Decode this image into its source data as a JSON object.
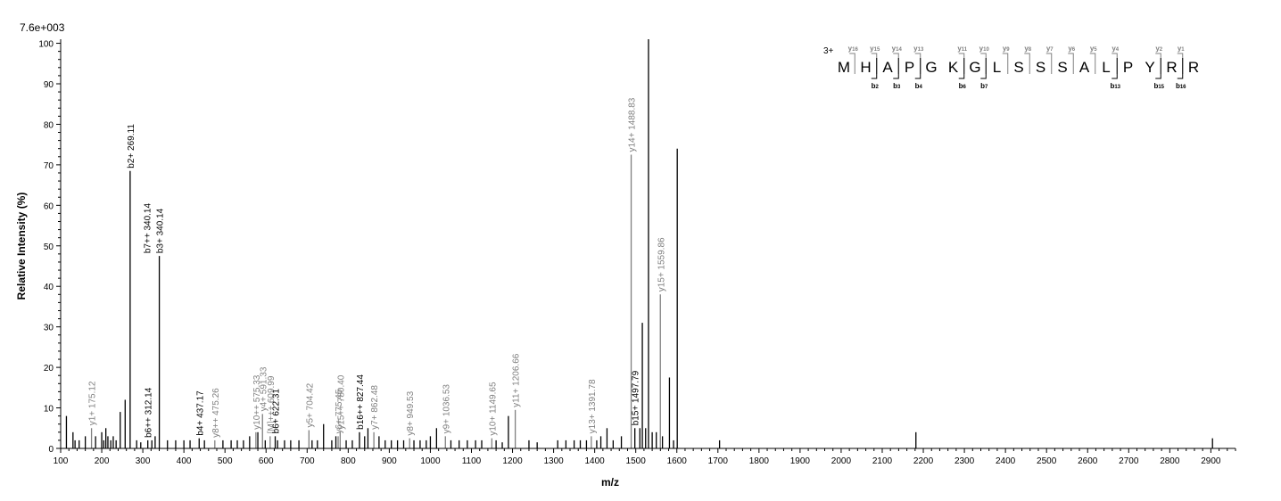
{
  "chart_data": {
    "type": "bar",
    "title": "",
    "xlabel": "m/z",
    "ylabel": "Relative   Intensity (%)",
    "scale_label": "7.6e+003",
    "xlim": [
      100,
      2960
    ],
    "ylim": [
      0,
      101
    ],
    "x_ticks": [
      100,
      200,
      300,
      400,
      500,
      600,
      700,
      800,
      900,
      1000,
      1100,
      1200,
      1300,
      1400,
      1500,
      1600,
      1700,
      1800,
      1900,
      2000,
      2100,
      2200,
      2300,
      2400,
      2500,
      2600,
      2700,
      2800,
      2900
    ],
    "y_ticks": [
      0,
      10,
      20,
      30,
      40,
      50,
      60,
      70,
      80,
      90,
      100
    ],
    "colors": {
      "b_ion": "#000000",
      "y_ion": "#808080",
      "unassigned": "#000000"
    },
    "peaks": [
      {
        "x": 114,
        "y": 8
      },
      {
        "x": 130,
        "y": 4
      },
      {
        "x": 135,
        "y": 2
      },
      {
        "x": 145,
        "y": 2
      },
      {
        "x": 160,
        "y": 3
      },
      {
        "x": 175.12,
        "y": 5,
        "label": "y1+ 175.12",
        "ion": "y"
      },
      {
        "x": 185,
        "y": 3
      },
      {
        "x": 200,
        "y": 4
      },
      {
        "x": 205,
        "y": 2
      },
      {
        "x": 210,
        "y": 5
      },
      {
        "x": 215,
        "y": 3
      },
      {
        "x": 222,
        "y": 2
      },
      {
        "x": 228,
        "y": 3
      },
      {
        "x": 235,
        "y": 2
      },
      {
        "x": 245,
        "y": 9
      },
      {
        "x": 257,
        "y": 12
      },
      {
        "x": 269.11,
        "y": 68.5,
        "label": "b2+ 269.11",
        "ion": "b"
      },
      {
        "x": 285,
        "y": 2
      },
      {
        "x": 295,
        "y": 1.5
      },
      {
        "x": 312.14,
        "y": 2,
        "label": "b6++ 312.14",
        "ion": "b"
      },
      {
        "x": 322,
        "y": 2
      },
      {
        "x": 330,
        "y": 3
      },
      {
        "x": 340.14,
        "y": 47.5,
        "label": "b3+ 340.14",
        "ion": "b"
      },
      {
        "x": 340.14,
        "y": 47.5,
        "label": "b7++ 340.14",
        "ion": "b",
        "label_only": true
      },
      {
        "x": 360,
        "y": 2
      },
      {
        "x": 380,
        "y": 2
      },
      {
        "x": 400,
        "y": 2
      },
      {
        "x": 415,
        "y": 2
      },
      {
        "x": 437.17,
        "y": 2.5,
        "label": "b4+ 437.17",
        "ion": "b"
      },
      {
        "x": 450,
        "y": 2
      },
      {
        "x": 475.26,
        "y": 2,
        "label": "y8++ 475.26",
        "ion": "y"
      },
      {
        "x": 495,
        "y": 2
      },
      {
        "x": 515,
        "y": 2
      },
      {
        "x": 530,
        "y": 2
      },
      {
        "x": 545,
        "y": 2
      },
      {
        "x": 560,
        "y": 3
      },
      {
        "x": 575.33,
        "y": 4,
        "label": "y10++ 575.33",
        "ion": "y"
      },
      {
        "x": 580,
        "y": 4
      },
      {
        "x": 591.33,
        "y": 8.5,
        "label": "y4+ 591.33",
        "ion": "y"
      },
      {
        "x": 598,
        "y": 2
      },
      {
        "x": 609.99,
        "y": 3,
        "label": "[M]+++ 609.99",
        "ion": "y"
      },
      {
        "x": 622.31,
        "y": 3,
        "label": "b6+ 622.31",
        "ion": "b"
      },
      {
        "x": 628,
        "y": 2
      },
      {
        "x": 645,
        "y": 2
      },
      {
        "x": 660,
        "y": 2
      },
      {
        "x": 680,
        "y": 2
      },
      {
        "x": 704.42,
        "y": 4.5,
        "label": "y5+ 704.42",
        "ion": "y"
      },
      {
        "x": 712,
        "y": 2
      },
      {
        "x": 725,
        "y": 2
      },
      {
        "x": 740,
        "y": 6
      },
      {
        "x": 760,
        "y": 2
      },
      {
        "x": 770,
        "y": 3
      },
      {
        "x": 775.45,
        "y": 3,
        "label": "y6+ 775.45",
        "ion": "y"
      },
      {
        "x": 780.4,
        "y": 4,
        "label": "y15++ 780.40",
        "ion": "y"
      },
      {
        "x": 795,
        "y": 2
      },
      {
        "x": 810,
        "y": 2
      },
      {
        "x": 827.44,
        "y": 4,
        "label": "b16++ 827.44",
        "ion": "b"
      },
      {
        "x": 840,
        "y": 3
      },
      {
        "x": 848,
        "y": 5
      },
      {
        "x": 862.48,
        "y": 4,
        "label": "y7+ 862.48",
        "ion": "y"
      },
      {
        "x": 875,
        "y": 3
      },
      {
        "x": 890,
        "y": 2
      },
      {
        "x": 905,
        "y": 2
      },
      {
        "x": 920,
        "y": 2
      },
      {
        "x": 935,
        "y": 2
      },
      {
        "x": 949.53,
        "y": 2.5,
        "label": "y8+ 949.53",
        "ion": "y"
      },
      {
        "x": 960,
        "y": 2
      },
      {
        "x": 975,
        "y": 2
      },
      {
        "x": 990,
        "y": 2
      },
      {
        "x": 1000,
        "y": 3
      },
      {
        "x": 1015,
        "y": 5
      },
      {
        "x": 1036.53,
        "y": 3,
        "label": "y9+ 1036.53",
        "ion": "y"
      },
      {
        "x": 1050,
        "y": 2
      },
      {
        "x": 1070,
        "y": 2
      },
      {
        "x": 1090,
        "y": 2
      },
      {
        "x": 1110,
        "y": 2
      },
      {
        "x": 1125,
        "y": 2
      },
      {
        "x": 1149.65,
        "y": 2.5,
        "label": "y10+ 1149.65",
        "ion": "y"
      },
      {
        "x": 1160,
        "y": 2
      },
      {
        "x": 1175,
        "y": 1.5
      },
      {
        "x": 1190,
        "y": 8
      },
      {
        "x": 1206.66,
        "y": 9.5,
        "label": "y11+ 1206.66",
        "ion": "y"
      },
      {
        "x": 1240,
        "y": 2
      },
      {
        "x": 1260,
        "y": 1.5
      },
      {
        "x": 1310,
        "y": 2
      },
      {
        "x": 1330,
        "y": 2
      },
      {
        "x": 1350,
        "y": 2
      },
      {
        "x": 1365,
        "y": 2
      },
      {
        "x": 1380,
        "y": 2
      },
      {
        "x": 1391.78,
        "y": 3,
        "label": "y13+ 1391.78",
        "ion": "y"
      },
      {
        "x": 1405,
        "y": 2
      },
      {
        "x": 1415,
        "y": 3
      },
      {
        "x": 1430,
        "y": 5
      },
      {
        "x": 1445,
        "y": 2
      },
      {
        "x": 1465,
        "y": 3
      },
      {
        "x": 1488.83,
        "y": 72.5,
        "label": "y14+ 1488.83",
        "ion": "y"
      },
      {
        "x": 1497.79,
        "y": 5,
        "label": "b15+ 1497.79",
        "ion": "b"
      },
      {
        "x": 1510,
        "y": 5
      },
      {
        "x": 1516,
        "y": 31
      },
      {
        "x": 1524,
        "y": 5
      },
      {
        "x": 1531,
        "y": 101
      },
      {
        "x": 1540,
        "y": 4
      },
      {
        "x": 1550,
        "y": 4
      },
      {
        "x": 1559.86,
        "y": 38,
        "label": "y15+ 1559.86",
        "ion": "y"
      },
      {
        "x": 1565,
        "y": 3
      },
      {
        "x": 1582,
        "y": 17.5
      },
      {
        "x": 1592,
        "y": 2
      },
      {
        "x": 1601,
        "y": 74
      },
      {
        "x": 1704,
        "y": 2
      },
      {
        "x": 2182,
        "y": 4
      },
      {
        "x": 2904,
        "y": 2.5
      }
    ],
    "sequence": {
      "charge": "3+",
      "residues": [
        "M",
        "H",
        "A",
        "P",
        "G",
        "K",
        "G",
        "L",
        "S",
        "S",
        "S",
        "A",
        "L",
        "P",
        "Y",
        "R",
        "R"
      ],
      "y_ions": [
        {
          "after": 1,
          "name": "y",
          "num": "16"
        },
        {
          "after": 2,
          "name": "y",
          "num": "15"
        },
        {
          "after": 3,
          "name": "y",
          "num": "14"
        },
        {
          "after": 4,
          "name": "y",
          "num": "13"
        },
        {
          "after": 6,
          "name": "y",
          "num": "11"
        },
        {
          "after": 7,
          "name": "y",
          "num": "10"
        },
        {
          "after": 8,
          "name": "y",
          "num": "9"
        },
        {
          "after": 9,
          "name": "y",
          "num": "8"
        },
        {
          "after": 10,
          "name": "y",
          "num": "7"
        },
        {
          "after": 11,
          "name": "y",
          "num": "6"
        },
        {
          "after": 12,
          "name": "y",
          "num": "5"
        },
        {
          "after": 13,
          "name": "y",
          "num": "4"
        },
        {
          "after": 15,
          "name": "y",
          "num": "2"
        },
        {
          "after": 16,
          "name": "y",
          "num": "1"
        }
      ],
      "b_ions": [
        {
          "after": 2,
          "name": "b",
          "num": "2"
        },
        {
          "after": 3,
          "name": "b",
          "num": "3"
        },
        {
          "after": 4,
          "name": "b",
          "num": "4"
        },
        {
          "after": 6,
          "name": "b",
          "num": "6"
        },
        {
          "after": 7,
          "name": "b",
          "num": "7"
        },
        {
          "after": 13,
          "name": "b",
          "num": "13"
        },
        {
          "after": 15,
          "name": "b",
          "num": "15"
        },
        {
          "after": 16,
          "name": "b",
          "num": "16"
        }
      ]
    }
  }
}
